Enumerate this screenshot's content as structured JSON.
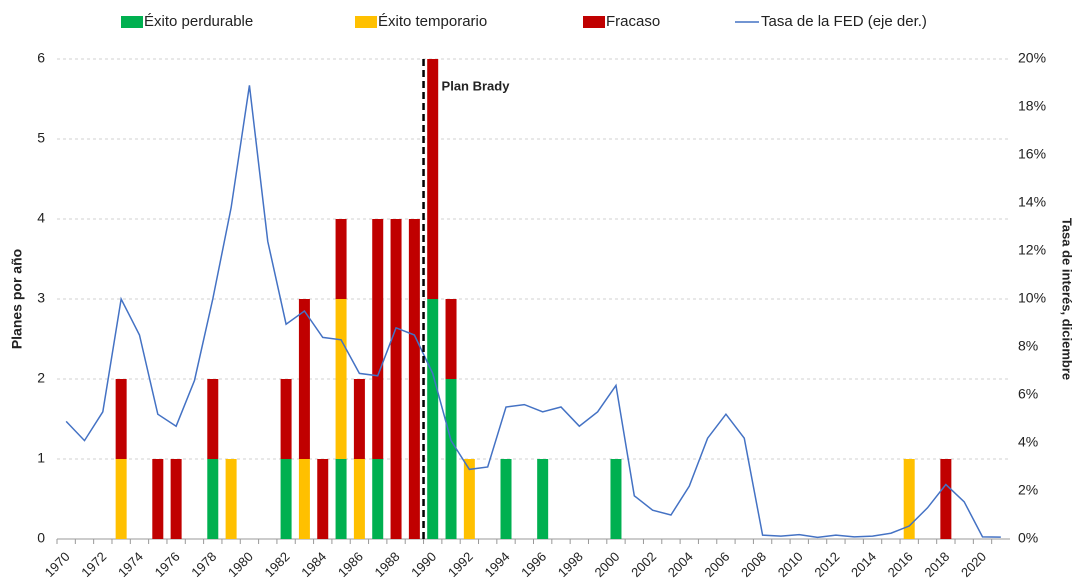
{
  "chart_data": {
    "type": "bar",
    "annotation": "Plan Brady",
    "y_label": "Planes por año",
    "y2_label": "Tasa de interés, diciembre",
    "categories": [
      "1970",
      null,
      "1972",
      null,
      "1974",
      null,
      "1976",
      null,
      "1978",
      null,
      "1980",
      null,
      "1982",
      null,
      "1984",
      null,
      "1986",
      null,
      "1988",
      null,
      "1990",
      null,
      "1992",
      null,
      "1994",
      null,
      "1996",
      null,
      "1998",
      null,
      "2000",
      null,
      "2002",
      null,
      "2004",
      null,
      "2006",
      null,
      "2008",
      null,
      "2010",
      null,
      "2012",
      null,
      "2014",
      null,
      "2016",
      null,
      "2018",
      null,
      "2020",
      null
    ],
    "series": [
      {
        "name": "Éxito perdurable",
        "color": "#00b050",
        "values": [
          0,
          0,
          0,
          0,
          0,
          0,
          0,
          0,
          1,
          0,
          0,
          0,
          1,
          0,
          0,
          1,
          0,
          1,
          0,
          0,
          3,
          2,
          0,
          0,
          1,
          0,
          1,
          0,
          0,
          0,
          1,
          0,
          0,
          0,
          0,
          0,
          0,
          0,
          0,
          0,
          0,
          0,
          0,
          0,
          0,
          0,
          0,
          0,
          0,
          0,
          0,
          0
        ]
      },
      {
        "name": "Éxito temporario",
        "color": "#ffc000",
        "values": [
          0,
          0,
          0,
          1,
          0,
          0,
          0,
          0,
          0,
          1,
          0,
          0,
          0,
          1,
          0,
          2,
          1,
          0,
          0,
          0,
          0,
          0,
          1,
          0,
          0,
          0,
          0,
          0,
          0,
          0,
          0,
          0,
          0,
          0,
          0,
          0,
          0,
          0,
          0,
          0,
          0,
          0,
          0,
          0,
          0,
          0,
          1,
          0,
          0,
          0,
          0,
          0
        ]
      },
      {
        "name": "Fracaso",
        "color": "#c00000",
        "values": [
          0,
          0,
          0,
          1,
          0,
          1,
          1,
          0,
          1,
          0,
          0,
          0,
          1,
          2,
          1,
          1,
          1,
          3,
          4,
          4,
          3,
          1,
          0,
          0,
          0,
          0,
          0,
          0,
          0,
          0,
          0,
          0,
          0,
          0,
          0,
          0,
          0,
          0,
          0,
          0,
          0,
          0,
          0,
          0,
          0,
          0,
          0,
          0,
          1,
          0,
          0,
          0
        ]
      },
      {
        "name": "Tasa de la FED (eje der.)",
        "color": "#4472c4",
        "axis": "y2",
        "type": "line",
        "values": [
          4.9,
          4.1,
          5.3,
          10.0,
          8.5,
          5.2,
          4.7,
          6.6,
          10.0,
          13.8,
          18.9,
          12.4,
          8.95,
          9.5,
          8.4,
          8.3,
          6.9,
          6.8,
          8.8,
          8.5,
          6.9,
          4.1,
          2.9,
          3.0,
          5.5,
          5.6,
          5.3,
          5.5,
          4.7,
          5.3,
          6.4,
          1.8,
          1.2,
          1.0,
          2.2,
          4.2,
          5.2,
          4.2,
          0.16,
          0.12,
          0.18,
          0.07,
          0.16,
          0.09,
          0.12,
          0.24,
          0.54,
          1.3,
          2.27,
          1.55,
          0.09,
          0.08
        ]
      }
    ],
    "ylim": [
      0,
      6
    ],
    "yticks": [
      0,
      1,
      2,
      3,
      4,
      5,
      6
    ],
    "y2lim": [
      0,
      20
    ],
    "y2ticks": [
      {
        "value": 0,
        "label": "0%"
      },
      {
        "value": 2,
        "label": "2%"
      },
      {
        "value": 4,
        "label": "4%"
      },
      {
        "value": 6,
        "label": "6%"
      },
      {
        "value": 8,
        "label": "8%"
      },
      {
        "value": 10,
        "label": "10%"
      },
      {
        "value": 12,
        "label": "12%"
      },
      {
        "value": 14,
        "label": "14%"
      },
      {
        "value": 16,
        "label": "16%"
      },
      {
        "value": 18,
        "label": "18%"
      },
      {
        "value": 20,
        "label": "20%"
      }
    ],
    "grid": true,
    "legend": "top"
  }
}
